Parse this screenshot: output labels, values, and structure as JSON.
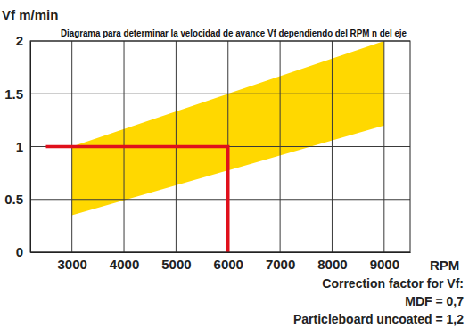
{
  "chart_data": {
    "type": "range",
    "title": "Diagrama para determinar la velocidad de avance Vf dependiendo del RPM n del eje",
    "y_label": "Vf m/min",
    "x_label": "RPM",
    "annotations": [
      "Correction factor for Vf:",
      "MDF = 0,7",
      "Particleboard uncoated = 1,2"
    ],
    "xlim": [
      2200,
      9500
    ],
    "xticks": [
      3000,
      4000,
      5000,
      6000,
      7000,
      8000,
      9000
    ],
    "ylim": [
      0,
      2
    ],
    "yticks": [
      0,
      0.5,
      1,
      1.5,
      2
    ],
    "grid": true,
    "series": [
      {
        "type": "range",
        "color": "#ffd800",
        "x": [
          3000,
          9000
        ],
        "lower": [
          0.35,
          1.2
        ],
        "upper": [
          1.0,
          2.0
        ]
      },
      {
        "type": "line",
        "color": "#e0101c",
        "line_style": "solid",
        "x": [
          2500,
          6000,
          6000
        ],
        "values": [
          1,
          1,
          0
        ]
      }
    ]
  }
}
